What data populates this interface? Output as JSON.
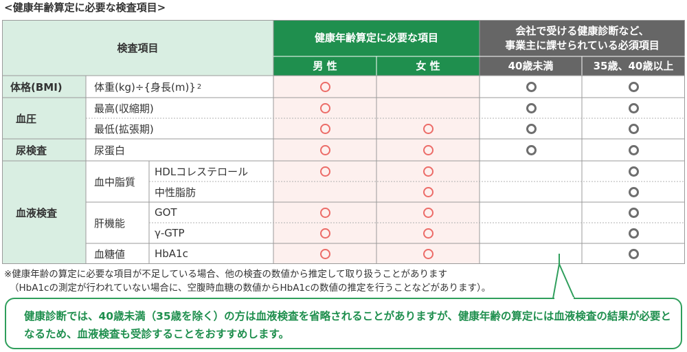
{
  "title": "<健康年齢算定に必要な検査項目>",
  "colors": {
    "green_header": "#1f8f4e",
    "gray_header": "#666666",
    "category_bg": "#d9eee2",
    "female_col_bg": "#fdf0ee",
    "mark_required": "#ec6b67",
    "mark_company": "#6e6e6e"
  },
  "table": {
    "header_item": "検査項目",
    "header_required": "健康年齢算定に必要な項目",
    "header_company_line1": "会社で受ける健康診断など、",
    "header_company_line2": "事業主に課せられている必須項目",
    "col_male": "男 性",
    "col_female": "女 性",
    "col_under40": "40歳未満",
    "col_35_40plus": "35歳、40歳以上",
    "categories": {
      "bmi": "体格(BMI)",
      "blood_pressure": "血圧",
      "urine": "尿検査",
      "blood": "血液検査"
    },
    "groups": {
      "lipid": "血中脂質",
      "liver": "肝機能",
      "glucose": "血糖値"
    },
    "rows": [
      {
        "label": "体重(kg)÷{身長(m)}",
        "sup": "2",
        "male": true,
        "female": false,
        "under40": true,
        "over40": true
      },
      {
        "label": "最高(収縮期)",
        "male": true,
        "female": false,
        "under40": true,
        "over40": true
      },
      {
        "label": "最低(拡張期)",
        "male": true,
        "female": true,
        "under40": true,
        "over40": true
      },
      {
        "label": "尿蛋白",
        "male": true,
        "female": true,
        "under40": true,
        "over40": true
      },
      {
        "label": "HDLコレステロール",
        "male": true,
        "female": true,
        "under40": false,
        "over40": true
      },
      {
        "label": "中性脂肪",
        "male": false,
        "female": true,
        "under40": false,
        "over40": true
      },
      {
        "label": "GOT",
        "male": true,
        "female": true,
        "under40": false,
        "over40": true
      },
      {
        "label": "γ-GTP",
        "male": true,
        "female": true,
        "under40": false,
        "over40": true
      },
      {
        "label": "HbA1c",
        "male": true,
        "female": true,
        "under40": false,
        "over40": true
      }
    ]
  },
  "notes": {
    "line1": "※健康年齢の算定に必要な項目が不足している場合、他の検査の数値から推定して取り扱うことがあります",
    "line2": "（HbA1cの測定が行われていない場合に、空腹時血糖の数値からHbA1cの数値の推定を行うことなどがあります）。"
  },
  "callout": {
    "text": "健康診断では、40歳未満（35歳を除く）の方は血液検査を省略されることがありますが、健康年齢の算定には血液検査の結果が必要となるため、血液検査も受診することをおすすめします。"
  }
}
